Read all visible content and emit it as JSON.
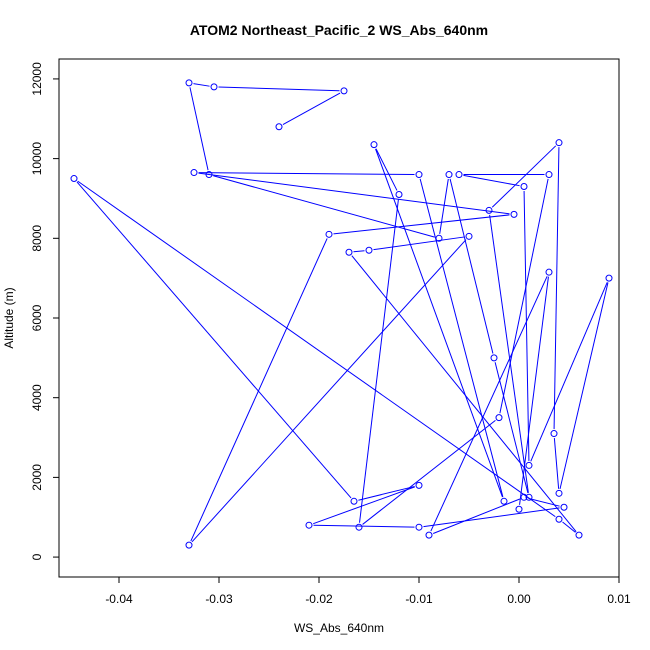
{
  "chart_data": {
    "type": "line",
    "title": "ATOM2 Northeast_Pacific_2 WS_Abs_640nm",
    "xlabel": "WS_Abs_640nm",
    "ylabel": "Altitude (m)",
    "xlim": [
      -0.046,
      0.01
    ],
    "ylim": [
      -500,
      12500
    ],
    "x_ticks": [
      -0.04,
      -0.03,
      -0.02,
      -0.01,
      0.0,
      0.01
    ],
    "x_tick_labels": [
      "-0.04",
      "-0.03",
      "-0.02",
      "-0.01",
      "0.00",
      "0.01"
    ],
    "y_ticks": [
      0,
      2000,
      4000,
      6000,
      8000,
      10000,
      12000
    ],
    "y_tick_labels": [
      "0",
      "2000",
      "4000",
      "6000",
      "8000",
      "10000",
      "12000"
    ],
    "grid": false,
    "marker": "open-circle",
    "series": [
      {
        "color": "#0000ff",
        "x": [
          -0.024,
          -0.0175,
          -0.0305,
          -0.033,
          -0.031,
          -0.008,
          -0.007,
          -0.0025,
          0.001,
          -0.003,
          0.004,
          0.0035,
          0.004,
          0.009,
          0.001,
          0.0005,
          -0.006,
          0.003,
          -0.002,
          -0.016,
          -0.012,
          -0.0145,
          -0.0015,
          -0.01,
          -0.0325,
          -0.0005,
          -0.019,
          -0.033,
          -0.005,
          -0.015,
          -0.017,
          0.006,
          0.004,
          -0.0445,
          -0.0165,
          -0.01,
          -0.021,
          -0.01,
          0.0045,
          0.0005,
          -0.009,
          0.003,
          0.0
        ],
        "y": [
          10800,
          11700,
          11800,
          11900,
          9600,
          8000,
          9600,
          5000,
          1500,
          8700,
          10400,
          3100,
          1600,
          7000,
          2300,
          9300,
          9600,
          9600,
          3500,
          750,
          9100,
          10350,
          1400,
          9600,
          9650,
          8600,
          8100,
          300,
          8050,
          7700,
          7650,
          550,
          950,
          9500,
          1400,
          1800,
          800,
          750,
          1250,
          1500,
          550,
          7150,
          1200
        ]
      }
    ]
  }
}
